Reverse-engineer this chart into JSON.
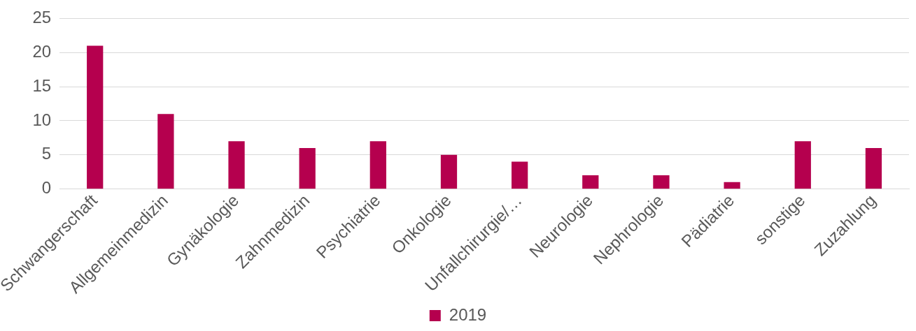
{
  "chart_data": {
    "type": "bar",
    "categories": [
      "Schwangerschaft",
      "Allgemeinmedizin",
      "Gynäkologie",
      "Zahnmedizin",
      "Psychiatrie",
      "Onkologie",
      "Unfallchirurgie/…",
      "Neurologie",
      "Nephrologie",
      "Pädiatrie",
      "sonstige",
      "Zuzahlung"
    ],
    "series": [
      {
        "name": "2019",
        "color": "#b5004e",
        "values": [
          21,
          11,
          7,
          6,
          7,
          5,
          4,
          2,
          2,
          1,
          7,
          6
        ]
      }
    ],
    "ylim": [
      0,
      25
    ],
    "yticks": [
      0,
      5,
      10,
      15,
      20,
      25
    ],
    "grid": "y",
    "legend": "bottom"
  }
}
